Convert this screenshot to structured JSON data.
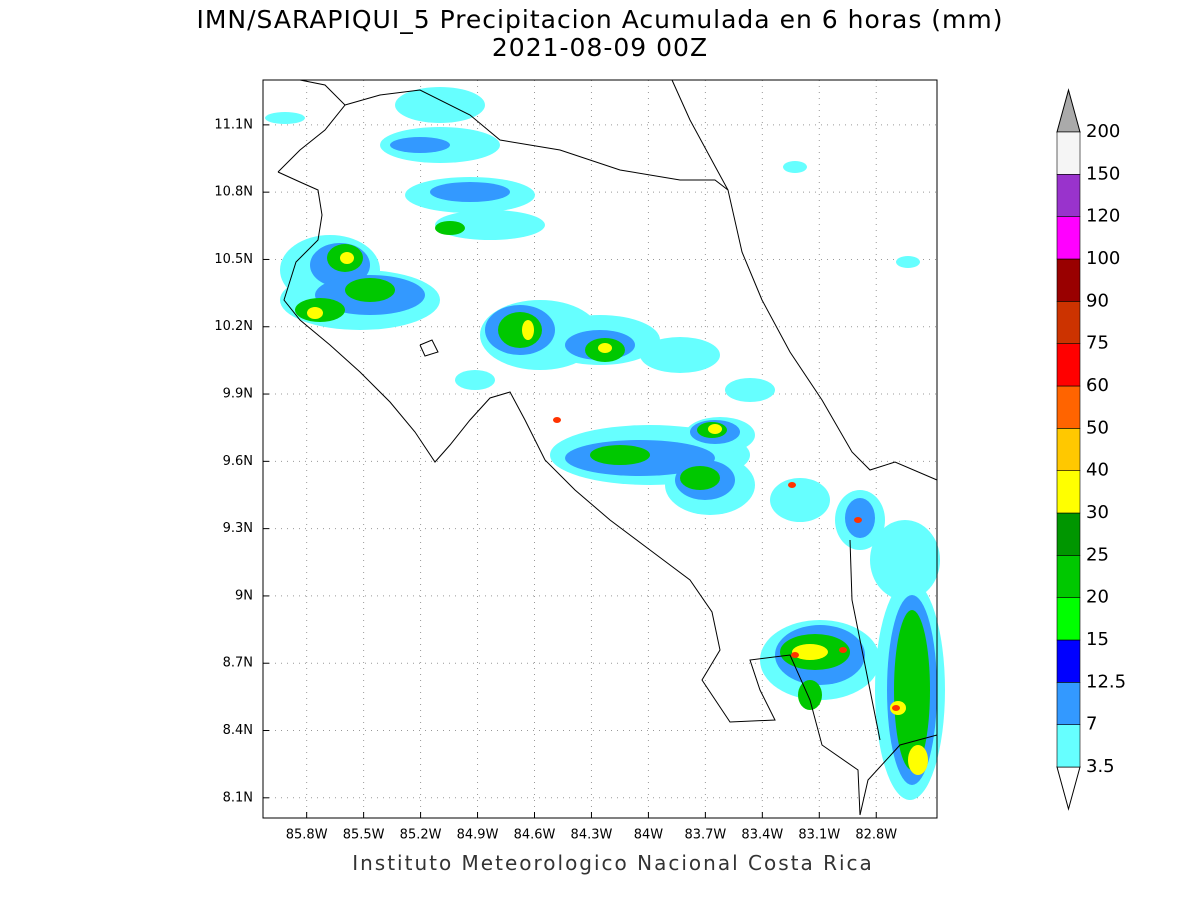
{
  "header": {
    "title": "IMN/SARAPIQUI_5 Precipitacion Acumulada en 6 horas (mm)",
    "subtitle": "2021-08-09 00Z"
  },
  "map": {
    "xlim": [
      -86.03,
      -82.48
    ],
    "ylim": [
      8.01,
      11.3
    ],
    "xticks": [
      {
        "value": -85.8,
        "label": "85.8W"
      },
      {
        "value": -85.5,
        "label": "85.5W"
      },
      {
        "value": -85.2,
        "label": "85.2W"
      },
      {
        "value": -84.9,
        "label": "84.9W"
      },
      {
        "value": -84.6,
        "label": "84.6W"
      },
      {
        "value": -84.3,
        "label": "84.3W"
      },
      {
        "value": -84.0,
        "label": "84W"
      },
      {
        "value": -83.7,
        "label": "83.7W"
      },
      {
        "value": -83.4,
        "label": "83.4W"
      },
      {
        "value": -83.1,
        "label": "83.1W"
      },
      {
        "value": -82.8,
        "label": "82.8W"
      }
    ],
    "yticks": [
      {
        "value": 8.1,
        "label": "8.1N"
      },
      {
        "value": 8.4,
        "label": "8.4N"
      },
      {
        "value": 8.7,
        "label": "8.7N"
      },
      {
        "value": 9.0,
        "label": "9N"
      },
      {
        "value": 9.3,
        "label": "9.3N"
      },
      {
        "value": 9.6,
        "label": "9.6N"
      },
      {
        "value": 9.9,
        "label": "9.9N"
      },
      {
        "value": 10.2,
        "label": "10.2N"
      },
      {
        "value": 10.5,
        "label": "10.5N"
      },
      {
        "value": 10.8,
        "label": "10.8N"
      },
      {
        "value": 11.1,
        "label": "11.1N"
      }
    ],
    "grid": true
  },
  "colorbar": {
    "levels": [
      3.5,
      7,
      12.5,
      15,
      20,
      25,
      30,
      40,
      50,
      60,
      75,
      90,
      100,
      120,
      150,
      200
    ],
    "colors": [
      "#66ffff",
      "#3399ff",
      "#0000ff",
      "#00ff00",
      "#00c800",
      "#009600",
      "#ffff00",
      "#ffc800",
      "#ff6400",
      "#ff0000",
      "#cc3300",
      "#990000",
      "#ff00ff",
      "#9933cc",
      "#f5f5f5"
    ],
    "under_color": "#ffffff",
    "over_color": "#aaaaaa"
  },
  "footer": "Instituto Meteorologico Nacional Costa Rica"
}
